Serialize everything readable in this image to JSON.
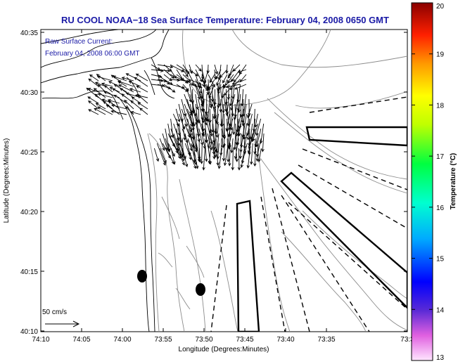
{
  "title": "RU COOL  NOAA−18  Sea Surface Temperature:  February 04, 2008 0650 GMT",
  "annotation": {
    "line1": "Raw Surface Current:",
    "line2": "February 04, 2008 06:00 GMT"
  },
  "axes": {
    "xlabel": "Longitude (Degrees:Minutes)",
    "ylabel": "Latitude (Degrees:Minutes)",
    "xticks": [
      "74:10",
      "74:05",
      "74:00",
      "73:55",
      "73:50",
      "73:45",
      "73:40",
      "73:35",
      "73:3"
    ],
    "yticks": [
      "40:35",
      "40:30",
      "40:25",
      "40:20",
      "40:15",
      "40:10"
    ]
  },
  "colorbar": {
    "label": "Temperature (°C)",
    "ticks": [
      "20",
      "19",
      "18",
      "17",
      "16",
      "15",
      "14",
      "13"
    ],
    "min": 13,
    "max": 20
  },
  "scale_label": "50 cm/s",
  "colors": {
    "title": "#1a1aa6",
    "land_outline": "#000000",
    "bathymetry": "#8c8c8c",
    "vectors": "#000000"
  },
  "map_features": {
    "vector_field": "surface current arrows",
    "shipping_lanes": "solid and dashed outlines",
    "markers": "two black oval markers"
  }
}
